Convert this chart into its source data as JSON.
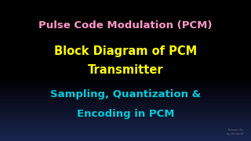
{
  "line1": "Pulse Code Modulation (PCM)",
  "line2": "Block Diagram of PCM",
  "line3": "Transmitter",
  "line4": "Sampling, Quantization &",
  "line5": "Encoding in PCM",
  "color1": "#FF99CC",
  "color2": "#FFFF00",
  "color3": "#FFFF00",
  "color4": "#00CCDD",
  "color5": "#00CCDD",
  "watermark": "Animate this\nby educatorist",
  "figsize": [
    3.2,
    1.8
  ],
  "dpi": 100
}
